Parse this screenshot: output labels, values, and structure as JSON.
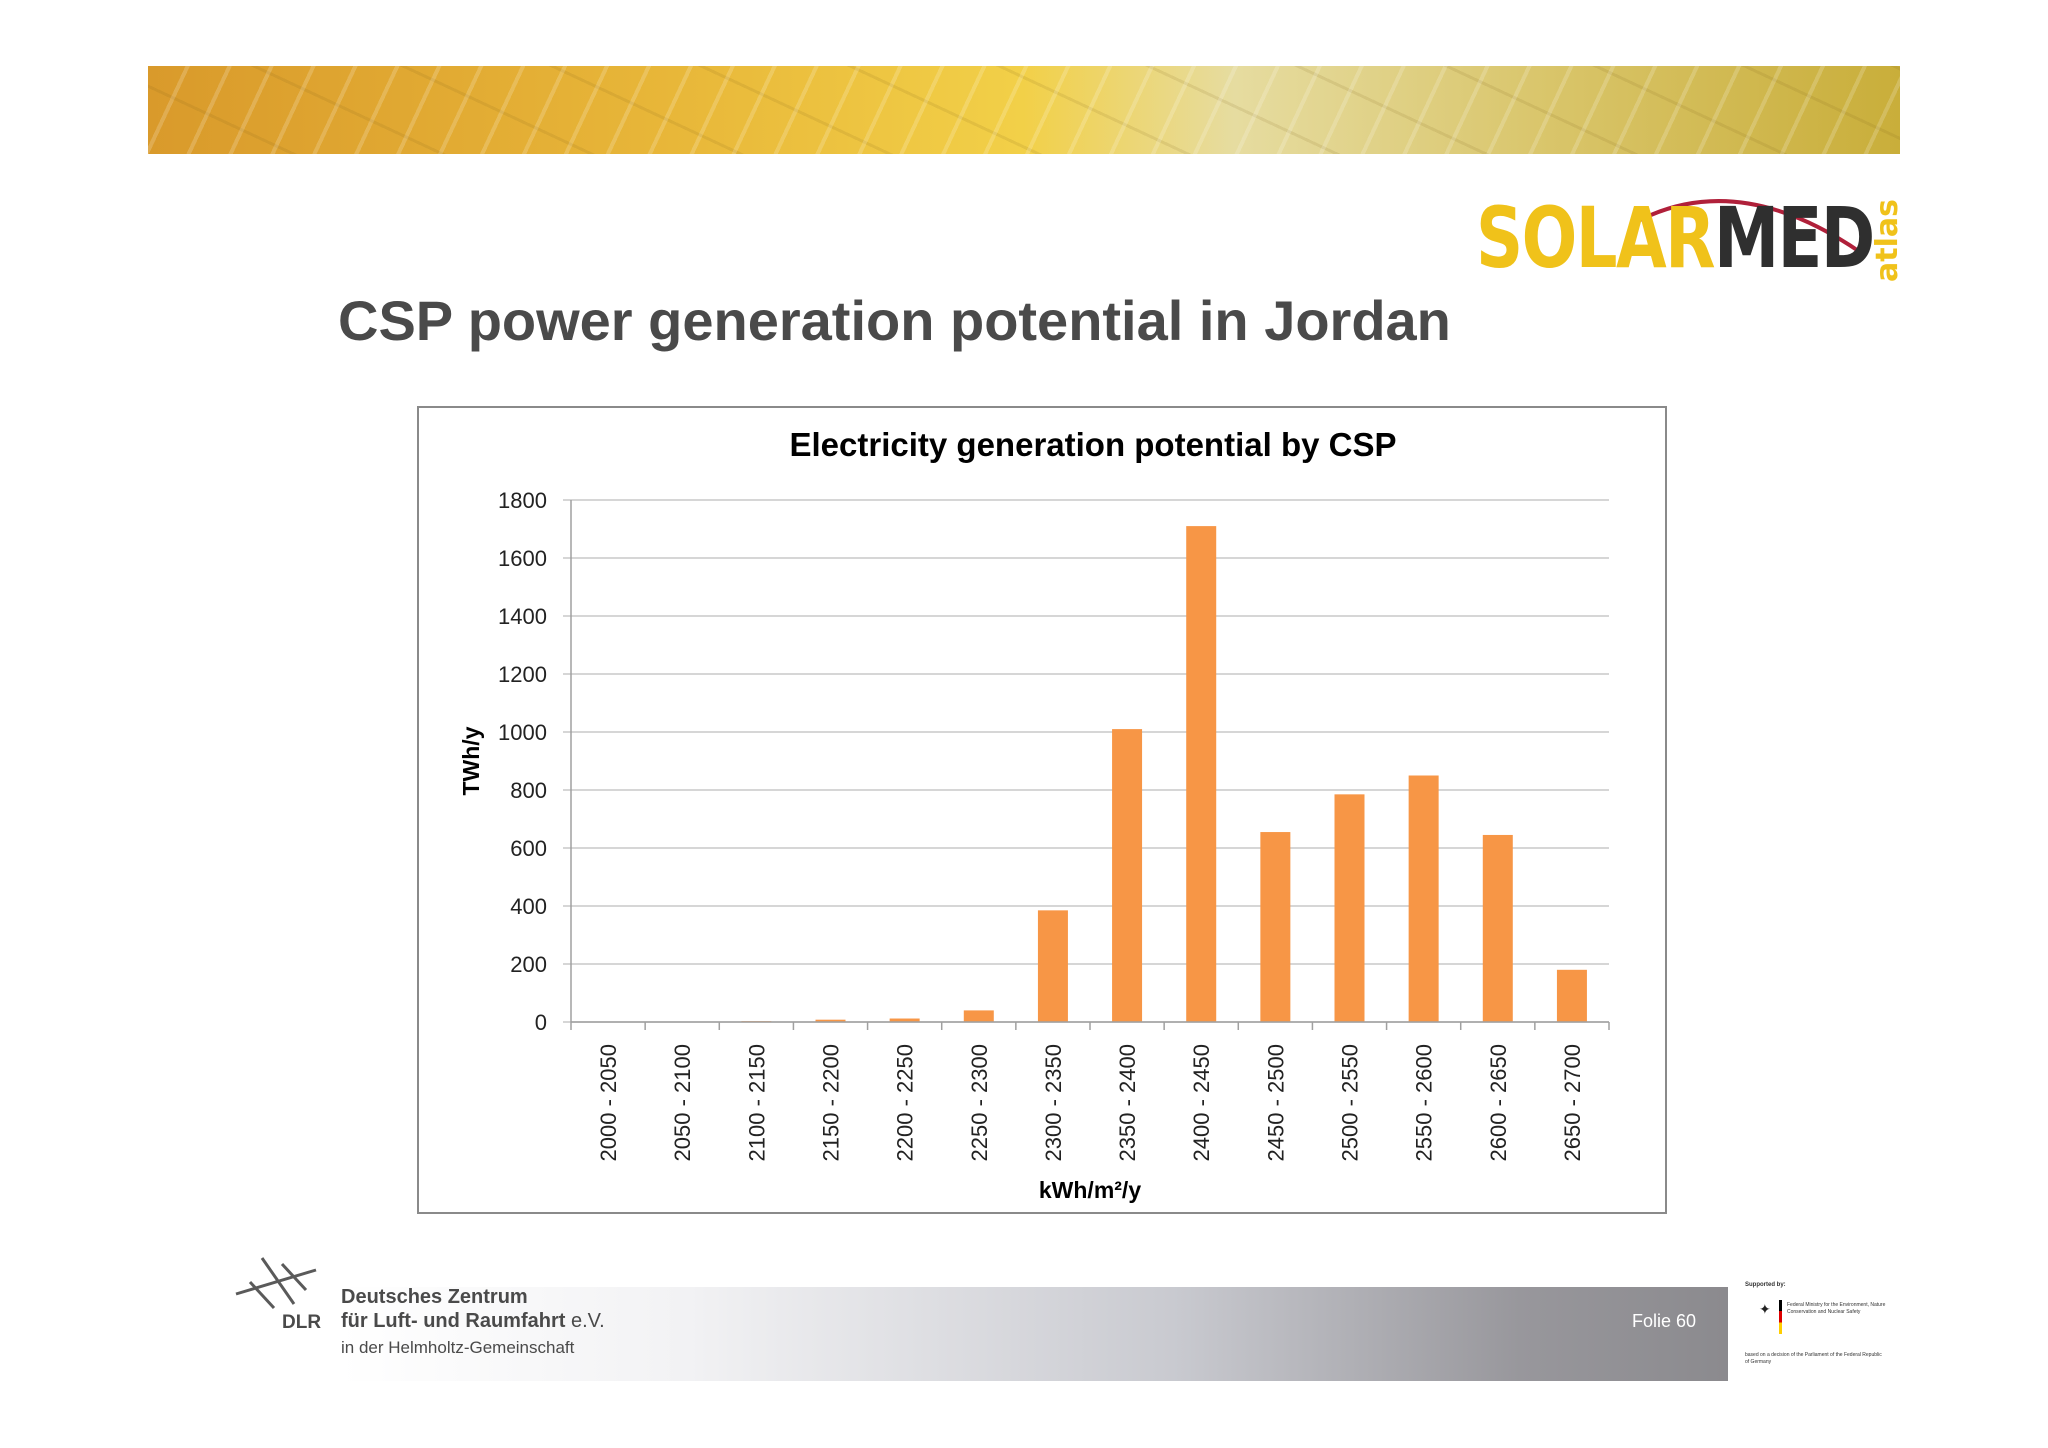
{
  "slide": {
    "title": "CSP power generation potential in Jordan",
    "page_label": "Folie 60"
  },
  "logo": {
    "solar": "SOLAR",
    "med": "MED",
    "atlas": "atlas"
  },
  "footer": {
    "org_line1": "Deutsches Zentrum",
    "org_line2_main": "für Luft- und Raumfahrt",
    "org_line2_suffix": "e.V.",
    "org_line3": "in der Helmholtz-Gemeinschaft",
    "dlr_abbrev": "DLR",
    "supported_by": "Supported by:",
    "ministry": "Federal Ministry for the Environment, Nature Conservation and Nuclear Safety",
    "decision": "based on a decision of the Parliament of the Federal Republic of Germany"
  },
  "colors": {
    "bar": "#f79646",
    "grid": "#c8c8c8",
    "title_text": "#4a4a4a",
    "logo_yellow": "#f0c21a",
    "logo_arc": "#b0203a"
  },
  "chart_data": {
    "type": "bar",
    "title": "Electricity generation potential by CSP",
    "xlabel": "kWh/m²/y",
    "ylabel": "TWh/y",
    "ylim": [
      0,
      1800
    ],
    "yticks": [
      "0",
      "200",
      "400",
      "600",
      "800",
      "1000",
      "1200",
      "1400",
      "1600",
      "1800"
    ],
    "grid": true,
    "legend": "none",
    "categories": [
      "2000 - 2050",
      "2050 - 2100",
      "2100 - 2150",
      "2150 - 2200",
      "2200 - 2250",
      "2250 - 2300",
      "2300 - 2350",
      "2350 - 2400",
      "2400 - 2450",
      "2450 - 2500",
      "2500 - 2550",
      "2550 - 2600",
      "2600 - 2650",
      "2650 - 2700"
    ],
    "values": [
      0,
      0,
      3,
      8,
      12,
      40,
      385,
      1010,
      1710,
      655,
      785,
      850,
      645,
      180
    ]
  }
}
